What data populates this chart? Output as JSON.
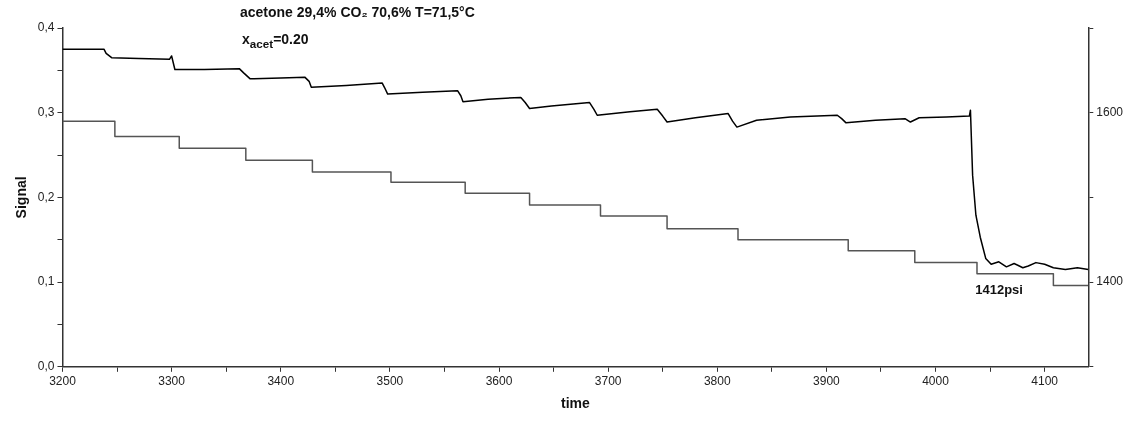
{
  "chart_data": {
    "type": "line",
    "title": "acetone 29,4% CO₂ 70,6%  T=71,5°C",
    "subtitle": "x$_{acet}$=0.20",
    "xlabel": "time",
    "ylabel": "Signal",
    "xlim": [
      3200,
      4140
    ],
    "xticks": [
      3200,
      {
        "value": 3250,
        "label": null
      },
      3300,
      {
        "value": 3350,
        "label": null
      },
      3400,
      {
        "value": 3450,
        "label": null
      },
      3500,
      {
        "value": 3550,
        "label": null
      },
      3600,
      {
        "value": 3650,
        "label": null
      },
      3700,
      {
        "value": 3750,
        "label": null
      },
      3800,
      {
        "value": 3850,
        "label": null
      },
      3900,
      {
        "value": 3950,
        "label": null
      },
      4000,
      {
        "value": 4050,
        "label": null
      },
      4100
    ],
    "ylim": [
      0,
      0.4
    ],
    "yticks": [
      {
        "value": 0,
        "label": "0,0"
      },
      {
        "value": 0.05,
        "label": null
      },
      {
        "value": 0.1,
        "label": "0,1"
      },
      {
        "value": 0.15,
        "label": null
      },
      {
        "value": 0.2,
        "label": "0,2"
      },
      {
        "value": 0.25,
        "label": null
      },
      {
        "value": 0.3,
        "label": "0,3"
      },
      {
        "value": 0.35,
        "label": null
      },
      {
        "value": 0.4,
        "label": "0,4"
      }
    ],
    "y2lim": [
      1300,
      1700
    ],
    "y2ticks": [
      {
        "value": 1300,
        "label": null
      },
      1400,
      {
        "value": 1500,
        "label": null
      },
      1600,
      {
        "value": 1700,
        "label": null
      }
    ],
    "marker": "none",
    "line_style": "solid",
    "grid": false,
    "legend": false,
    "annotations": [
      "1412psi"
    ],
    "series": [
      {
        "type": "line",
        "color": "#000000",
        "x": [
          3200,
          3238,
          3240,
          3245,
          3270,
          3298,
          3300,
          3303,
          3330,
          3362,
          3366,
          3372,
          3400,
          3422,
          3426,
          3428,
          3460,
          3493,
          3495,
          3498,
          3530,
          3562,
          3565,
          3567,
          3590,
          3620,
          3624,
          3628,
          3648,
          3683,
          3687,
          3690,
          3720,
          3745,
          3750,
          3754,
          3780,
          3810,
          3814,
          3818,
          3836,
          3867,
          3910,
          3914,
          3918,
          3945,
          3972,
          3977,
          3985,
          4010,
          4031,
          4032,
          4034,
          4037,
          4041,
          4046,
          4051,
          4058,
          4065,
          4072,
          4080,
          4085,
          4092,
          4100,
          4108,
          4119,
          4130,
          4140
        ],
        "values": [
          0.375,
          0.375,
          0.37,
          0.365,
          0.364,
          0.363,
          0.367,
          0.351,
          0.351,
          0.352,
          0.347,
          0.34,
          0.341,
          0.342,
          0.337,
          0.33,
          0.332,
          0.335,
          0.33,
          0.322,
          0.324,
          0.326,
          0.32,
          0.313,
          0.316,
          0.318,
          0.312,
          0.305,
          0.308,
          0.312,
          0.304,
          0.297,
          0.301,
          0.304,
          0.296,
          0.289,
          0.294,
          0.299,
          0.29,
          0.283,
          0.291,
          0.295,
          0.297,
          0.293,
          0.288,
          0.291,
          0.293,
          0.289,
          0.294,
          0.295,
          0.296,
          0.303,
          0.226,
          0.179,
          0.153,
          0.128,
          0.121,
          0.124,
          0.118,
          0.122,
          0.117,
          0.119,
          0.123,
          0.121,
          0.117,
          0.115,
          0.117,
          0.115
        ]
      },
      {
        "type": "step",
        "axis": "y2",
        "color": "#555555",
        "x": [
          3200,
          3248,
          3307,
          3368,
          3429,
          3501,
          3569,
          3628,
          3693,
          3754,
          3819,
          3920,
          3981,
          4038,
          4108,
          4140
        ],
        "values": [
          1590,
          1572,
          1558,
          1544,
          1530,
          1518,
          1505,
          1491,
          1478,
          1463,
          1450,
          1437,
          1423,
          1410,
          1396,
          1396
        ]
      }
    ]
  }
}
